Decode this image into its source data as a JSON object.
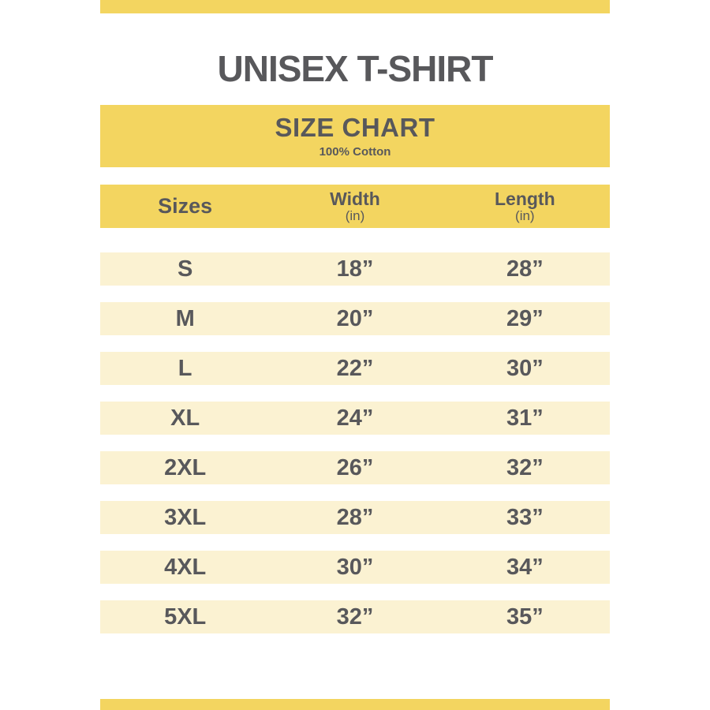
{
  "title": "UNISEX T-SHIRT",
  "banner": {
    "title": "SIZE CHART",
    "subtitle": "100% Cotton"
  },
  "table": {
    "headers": {
      "sizes": "Sizes",
      "width": "Width",
      "width_unit": "(in)",
      "length": "Length",
      "length_unit": "(in)"
    }
  },
  "chart_data": {
    "type": "table",
    "title": "SIZE CHART",
    "subtitle": "100% Cotton",
    "columns": [
      "Sizes",
      "Width (in)",
      "Length (in)"
    ],
    "rows": [
      [
        "S",
        "18”",
        "28”"
      ],
      [
        "M",
        "20”",
        "29”"
      ],
      [
        "L",
        "22”",
        "30”"
      ],
      [
        "XL",
        "24”",
        "31”"
      ],
      [
        "2XL",
        "26”",
        "32”"
      ],
      [
        "3XL",
        "28”",
        "33”"
      ],
      [
        "4XL",
        "30”",
        "34”"
      ],
      [
        "5XL",
        "32”",
        "35”"
      ]
    ]
  },
  "colors": {
    "yellow": "#F3D560",
    "cream": "#FBF2D2",
    "text_gray": "#58585B",
    "background": "#FFFFFF"
  }
}
